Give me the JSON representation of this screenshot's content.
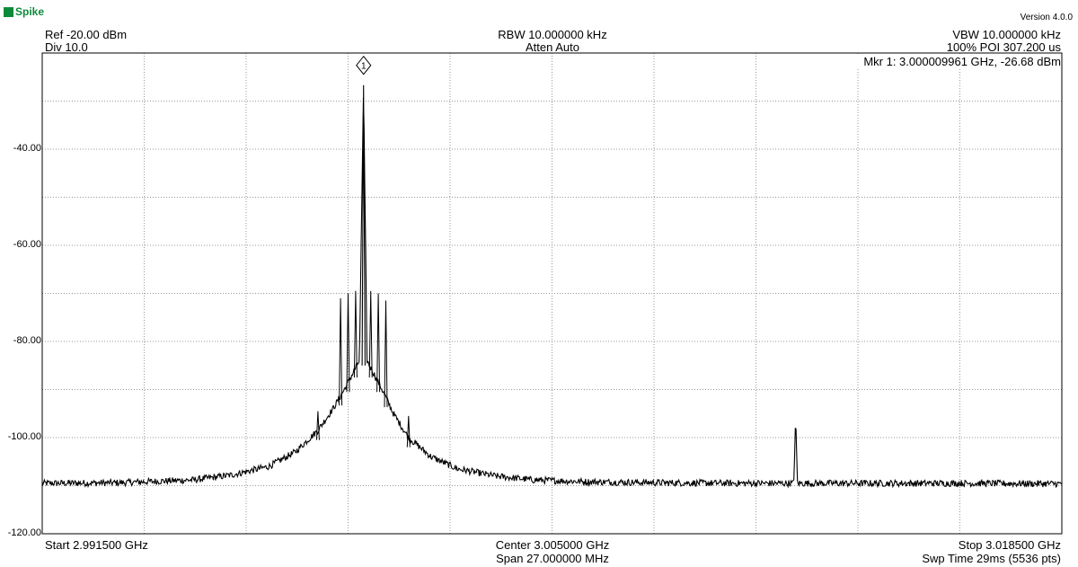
{
  "app": {
    "name": "Spike",
    "version": "Version 4.0.0"
  },
  "header": {
    "ref": "Ref -20.00 dBm",
    "div": "Div 10.0",
    "rbw": "RBW 10.000000 kHz",
    "atten": "Atten Auto",
    "vbw": "VBW 10.000000 kHz",
    "poi": "100% POI 307.200 us"
  },
  "marker": {
    "label": "1",
    "readout": "Mkr 1: 3.000009961 GHz, -26.68 dBm",
    "freq_ghz": 3.000009961,
    "level_dbm": -26.68
  },
  "footer": {
    "start": "Start 2.991500 GHz",
    "center": "Center 3.005000 GHz",
    "span": "Span 27.000000 MHz",
    "stop": "Stop 3.018500 GHz",
    "swp": "Swp Time 29ms (5536 pts)"
  },
  "colors": {
    "trace": "#000000",
    "grid": "#999999",
    "border": "#000000",
    "logo": "#0c8a3a"
  },
  "chart_data": {
    "type": "line",
    "xlabel": "",
    "ylabel": "",
    "x_unit": "GHz",
    "y_unit": "dBm",
    "xlim": [
      2.9915,
      3.0185
    ],
    "ylim": [
      -120,
      -20
    ],
    "grid": true,
    "y_tick_labels": [
      "-40.00",
      "-60.00",
      "-80.00",
      "-100.00",
      "-120.00"
    ],
    "y_tick_values": [
      -40,
      -60,
      -80,
      -100,
      -120
    ],
    "noise_floor_dbm": -109.5,
    "series": [
      {
        "x": [
          2.9915,
          2.9935,
          2.9955,
          2.9965,
          2.9975,
          2.9982,
          2.9988,
          2.9992,
          2.9995,
          2.9997,
          2.9999,
          3.00001,
          3.0001,
          3.0003,
          3.0005,
          3.0008,
          3.0012,
          3.0018,
          3.0025,
          3.0035,
          3.0045,
          3.006,
          3.008,
          3.01,
          3.0114,
          3.01145,
          3.0115,
          3.013,
          3.016,
          3.0185
        ],
        "y": [
          -109.5,
          -109.4,
          -108.8,
          -107.8,
          -106.0,
          -103.0,
          -98.5,
          -94.0,
          -90.0,
          -87.0,
          -84.0,
          -26.68,
          -84.0,
          -87.0,
          -90.0,
          -95.0,
          -100.0,
          -104.0,
          -106.5,
          -108.0,
          -108.8,
          -109.2,
          -109.4,
          -109.5,
          -109.5,
          -95.8,
          -109.5,
          -109.5,
          -109.5,
          -109.6
        ]
      }
    ],
    "spurs": [
      {
        "x": 2.9994,
        "y": -71.0
      },
      {
        "x": 2.9996,
        "y": -70.0
      },
      {
        "x": 2.9998,
        "y": -69.5
      },
      {
        "x": 3.0002,
        "y": -69.5
      },
      {
        "x": 3.0004,
        "y": -70.0
      },
      {
        "x": 3.0006,
        "y": -71.5
      },
      {
        "x": 2.9988,
        "y": -94.5
      },
      {
        "x": 3.0012,
        "y": -95.5
      }
    ]
  }
}
